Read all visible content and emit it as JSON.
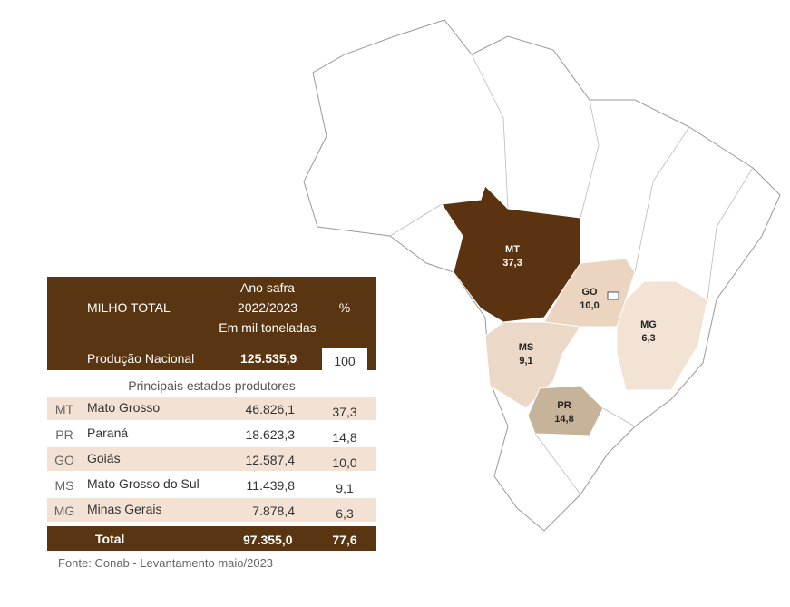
{
  "table": {
    "header": {
      "label": "MILHO TOTAL",
      "period": [
        "Ano safra",
        "2022/2023",
        "Em mil toneladas"
      ],
      "percent": "%"
    },
    "national": {
      "label": "Produção Nacional",
      "value": "125.535,9",
      "percent": "100"
    },
    "subheader": "Principais estados produtores",
    "rows": [
      {
        "code": "MT",
        "name": "Mato Grosso",
        "value": "46.826,1",
        "percent": "37,3"
      },
      {
        "code": "PR",
        "name": "Paraná",
        "value": "18.623,3",
        "percent": "14,8"
      },
      {
        "code": "GO",
        "name": "Goiás",
        "value": "12.587,4",
        "percent": "10,0"
      },
      {
        "code": "MS",
        "name": "Mato Grosso do Sul",
        "value": "11.439,8",
        "percent": "9,1"
      },
      {
        "code": "MG",
        "name": "Minas Gerais",
        "value": "7.878,4",
        "percent": "6,3"
      }
    ],
    "total": {
      "label": "Total",
      "value": "97.355,0",
      "percent": "77,6"
    }
  },
  "source": "Fonte: Conab - Levantamento maio/2023"
}
